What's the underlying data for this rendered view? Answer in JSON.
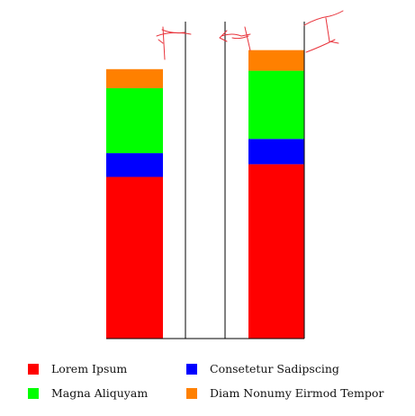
{
  "chart_data": {
    "type": "bar",
    "stacked": true,
    "title": "",
    "xlabel": "",
    "ylabel": "",
    "ylim": [
      0,
      100
    ],
    "grid": false,
    "legend": "bottom",
    "categories": [
      "",
      ""
    ],
    "series": [
      {
        "name": "Lorem Ipsum",
        "color": "#ff0000",
        "values": [
          51,
          55
        ]
      },
      {
        "name": "Consetetur Sadipscing",
        "color": "#0000ff",
        "values": [
          7.5,
          8
        ]
      },
      {
        "name": "Magna Aliquyam",
        "color": "#00ff00",
        "values": [
          20.5,
          21.5
        ]
      },
      {
        "name": "Diam Nonumy Eirmod Tempor",
        "color": "#ff8000",
        "values": [
          6,
          6.5
        ]
      }
    ]
  }
}
